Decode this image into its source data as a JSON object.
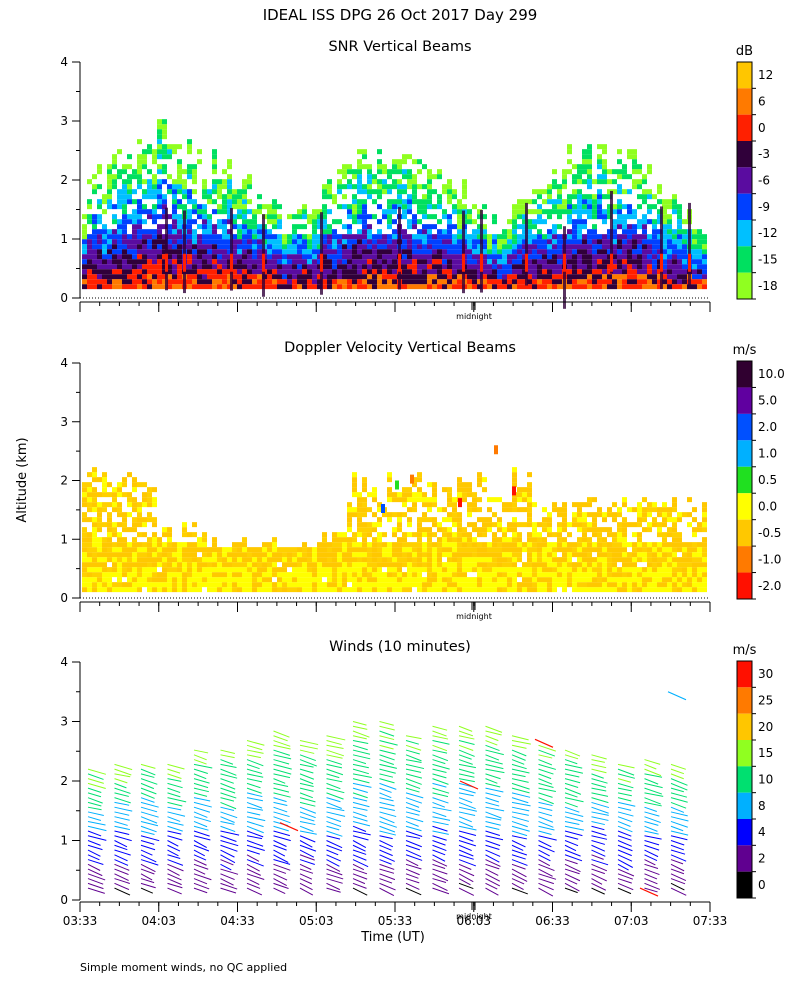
{
  "page": {
    "title": "IDEAL ISS DPG  26 Oct 2017 Day 299",
    "footnote": "Simple moment winds, no QC applied",
    "y_axis_label": "Altitude (km)",
    "x_axis_label": "Time (UT)",
    "midnight_label": "midnight"
  },
  "chart_data": [
    {
      "type": "heatmap",
      "title": "SNR Vertical Beams",
      "colorbar_title": "dB",
      "colorbar_ticks": [
        "12",
        "6",
        "0",
        "-3",
        "-6",
        "-9",
        "-12",
        "-15",
        "-18"
      ],
      "colorbar_colors": [
        "#ffc600",
        "#ff7a00",
        "#ff2000",
        "#30003a",
        "#5a0ca0",
        "#0040ff",
        "#00c0ff",
        "#00e060",
        "#90ff20"
      ],
      "y_ticks": [
        "0",
        "1",
        "2",
        "3",
        "4"
      ],
      "ylim": [
        0,
        4
      ],
      "ylabel": "Altitude (km)",
      "x_range": [
        "03:33",
        "07:33"
      ]
    },
    {
      "type": "heatmap",
      "title": "Doppler Velocity Vertical Beams",
      "colorbar_title": "m/s",
      "colorbar_ticks": [
        "10.0",
        "5.0",
        "2.0",
        "1.0",
        "0.5",
        "0.0",
        "-0.5",
        "-1.0",
        "-2.0"
      ],
      "colorbar_colors": [
        "#300030",
        "#6000a0",
        "#0050ff",
        "#00b0ff",
        "#20e020",
        "#ffff00",
        "#ffc800",
        "#ff7a00",
        "#ff1000"
      ],
      "y_ticks": [
        "0",
        "1",
        "2",
        "3",
        "4"
      ],
      "ylim": [
        0,
        4
      ],
      "x_range": [
        "03:33",
        "07:33"
      ]
    },
    {
      "type": "scatter",
      "title": "Winds (10 minutes)",
      "colorbar_title": "m/s",
      "colorbar_ticks": [
        "30",
        "25",
        "20",
        "15",
        "10",
        "8",
        "4",
        "2",
        "0"
      ],
      "colorbar_colors": [
        "#ff1000",
        "#ff7a00",
        "#ffc600",
        "#90ff20",
        "#00e070",
        "#00b0ff",
        "#0000ff",
        "#600090",
        "#000000"
      ],
      "y_ticks": [
        "0",
        "1",
        "2",
        "3",
        "4"
      ],
      "ylim": [
        0,
        4
      ],
      "x_ticks": [
        "03:33",
        "04:03",
        "04:33",
        "05:03",
        "05:33",
        "06:03",
        "06:33",
        "07:03",
        "07:33"
      ],
      "xlabel": "Time (UT)"
    }
  ]
}
